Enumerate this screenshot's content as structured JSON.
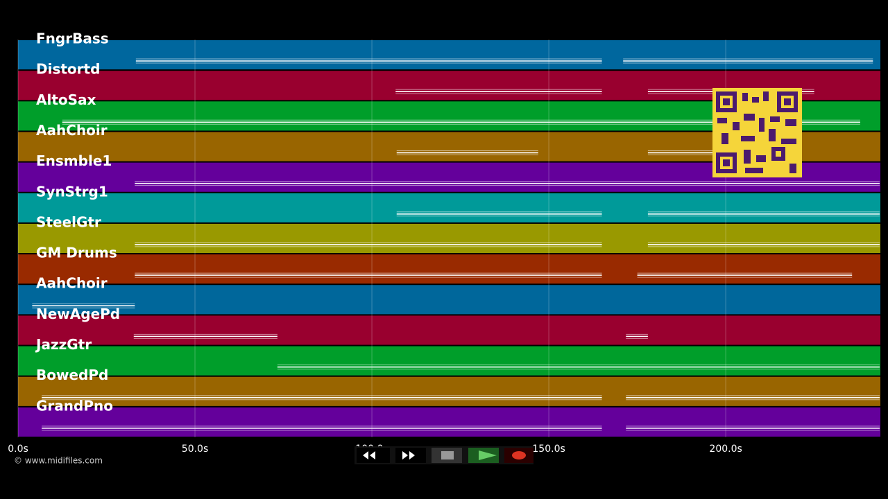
{
  "tracks": [
    {
      "name": "FngrBass",
      "color": "#00679e",
      "notes": [
        [
          33.3,
          165
        ],
        [
          171,
          241.6
        ]
      ]
    },
    {
      "name": "Distortd",
      "color": "#99002f",
      "notes": [
        [
          106.7,
          165
        ],
        [
          178,
          225
        ]
      ]
    },
    {
      "name": "AltoSax",
      "color": "#009e2a",
      "notes": [
        [
          12.5,
          238
        ]
      ]
    },
    {
      "name": "AahChoir",
      "color": "#996500",
      "notes": [
        [
          107,
          147
        ],
        [
          178,
          197
        ]
      ]
    },
    {
      "name": "Ensmble1",
      "color": "#64009b",
      "notes": [
        [
          33,
          243.5
        ]
      ]
    },
    {
      "name": "SynStrg1",
      "color": "#009a99",
      "notes": [
        [
          107,
          165
        ],
        [
          178,
          243.5
        ]
      ]
    },
    {
      "name": "SteelGtr",
      "color": "#999900",
      "notes": [
        [
          33,
          165
        ],
        [
          178,
          243.5
        ]
      ]
    },
    {
      "name": "GM Drums",
      "color": "#992a00",
      "notes": [
        [
          33,
          165
        ],
        [
          175,
          235.7
        ]
      ]
    },
    {
      "name": "AahChoir",
      "color": "#00679b",
      "notes": [
        [
          4,
          33
        ]
      ]
    },
    {
      "name": "NewAgePd",
      "color": "#99002f",
      "notes": [
        [
          32.7,
          73.3
        ],
        [
          171.8,
          178
        ]
      ]
    },
    {
      "name": "JazzGtr",
      "color": "#009e2a",
      "notes": [
        [
          73.3,
          243.5
        ]
      ]
    },
    {
      "name": "BowedPd",
      "color": "#996500",
      "notes": [
        [
          6.7,
          165
        ],
        [
          171.8,
          243.5
        ]
      ]
    },
    {
      "name": "GrandPno",
      "color": "#64009b",
      "notes": [
        [
          6.7,
          165
        ],
        [
          171.8,
          243.5
        ]
      ]
    }
  ],
  "time_axis": {
    "xlim": [
      0,
      243.7
    ],
    "ticks": [
      {
        "value": 0,
        "label": "0.0s"
      },
      {
        "value": 50,
        "label": "50.0s"
      },
      {
        "value": 100,
        "label": "100.0s"
      },
      {
        "value": 150,
        "label": "150.0s"
      },
      {
        "value": 200,
        "label": "200.0s"
      }
    ]
  },
  "credit": "© www.midifiles.com"
}
